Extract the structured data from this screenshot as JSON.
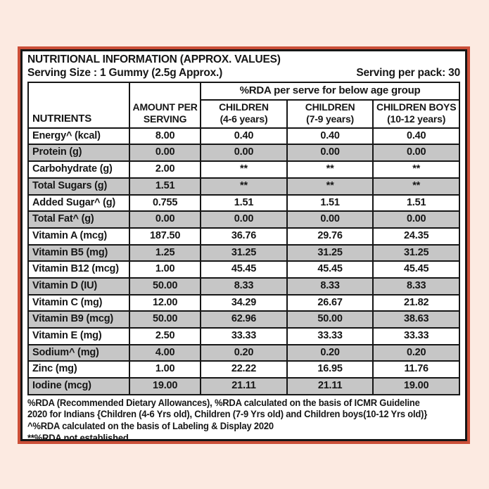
{
  "colors": {
    "background": "#fceae1",
    "frame_border": "#cb4f38",
    "ink": "#161616",
    "alt_row": "#c6c6c6"
  },
  "header": {
    "title": "NUTRITIONAL INFORMATION (APPROX. VALUES)",
    "serving_size": "Serving Size : 1 Gummy (2.5g Approx.)",
    "serving_per_pack": "Serving per pack: 30"
  },
  "table": {
    "rda_group_header": "%RDA per serve for below age group",
    "columns": {
      "nutrients": "NUTRIENTS",
      "amount_line1": "AMOUNT PER",
      "amount_line2": "SERVING",
      "age_groups": [
        {
          "line1": "CHILDREN",
          "line2": "(4-6 years)"
        },
        {
          "line1": "CHILDREN",
          "line2": "(7-9 years)"
        },
        {
          "line1": "CHILDREN BOYS",
          "line2": "(10-12 years)"
        }
      ]
    },
    "rows": [
      {
        "nutrient": "Energy^ (kcal)",
        "values": [
          "8.00",
          "0.40",
          "0.40",
          "0.40"
        ]
      },
      {
        "nutrient": "Protein (g)",
        "values": [
          "0.00",
          "0.00",
          "0.00",
          "0.00"
        ]
      },
      {
        "nutrient": "Carbohydrate (g)",
        "values": [
          "2.00",
          "**",
          "**",
          "**"
        ]
      },
      {
        "nutrient": "Total Sugars (g)",
        "values": [
          "1.51",
          "**",
          "**",
          "**"
        ]
      },
      {
        "nutrient": "Added Sugar^ (g)",
        "values": [
          "0.755",
          "1.51",
          "1.51",
          "1.51"
        ]
      },
      {
        "nutrient": "Total Fat^ (g)",
        "values": [
          "0.00",
          "0.00",
          "0.00",
          "0.00"
        ]
      },
      {
        "nutrient": "Vitamin A (mcg)",
        "values": [
          "187.50",
          "36.76",
          "29.76",
          "24.35"
        ]
      },
      {
        "nutrient": "Vitamin B5 (mg)",
        "values": [
          "1.25",
          "31.25",
          "31.25",
          "31.25"
        ]
      },
      {
        "nutrient": "Vitamin B12 (mcg)",
        "values": [
          "1.00",
          "45.45",
          "45.45",
          "45.45"
        ]
      },
      {
        "nutrient": "Vitamin D (IU)",
        "values": [
          "50.00",
          "8.33",
          "8.33",
          "8.33"
        ]
      },
      {
        "nutrient": "Vitamin C (mg)",
        "values": [
          "12.00",
          "34.29",
          "26.67",
          "21.82"
        ]
      },
      {
        "nutrient": "Vitamin B9 (mcg)",
        "values": [
          "50.00",
          "62.96",
          "50.00",
          "38.63"
        ]
      },
      {
        "nutrient": "Vitamin E (mg)",
        "values": [
          "2.50",
          "33.33",
          "33.33",
          "33.33"
        ]
      },
      {
        "nutrient": "Sodium^ (mg)",
        "values": [
          "4.00",
          "0.20",
          "0.20",
          "0.20"
        ]
      },
      {
        "nutrient": "Zinc (mg)",
        "values": [
          "1.00",
          "22.22",
          "16.95",
          "11.76"
        ]
      },
      {
        "nutrient": "Iodine (mcg)",
        "values": [
          "19.00",
          "21.11",
          "21.11",
          "19.00"
        ]
      }
    ]
  },
  "footnotes": [
    "%RDA (Recommended Dietary Allowances), %RDA calculated on the basis of ICMR Guideline",
    "2020 for Indians {Children (4-6 Yrs old), Children (7-9 Yrs old) and Children boys(10-12 Yrs old)}",
    "^%RDA calculated on the basis of Labeling & Display 2020",
    "**%RDA not established"
  ]
}
